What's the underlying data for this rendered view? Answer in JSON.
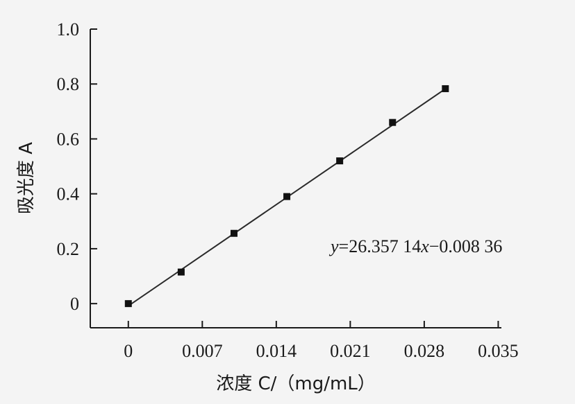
{
  "chart_data": {
    "type": "scatter",
    "x": [
      0,
      0.005,
      0.01,
      0.015,
      0.02,
      0.025,
      0.03
    ],
    "y": [
      0.0,
      0.115,
      0.256,
      0.39,
      0.52,
      0.66,
      0.783
    ],
    "fit_line": {
      "slope": 26.35714,
      "intercept": -0.00836,
      "x_range": [
        0,
        0.03
      ]
    },
    "equation": {
      "prefix": "y",
      "middle": "=26.357 14",
      "var": "x",
      "suffix": "−0.008 36"
    },
    "xlabel": "浓度 C/（mg/mL）",
    "ylabel": "吸光度 A",
    "xticks": [
      {
        "value": 0,
        "label": "0"
      },
      {
        "value": 0.007,
        "label": "0.007"
      },
      {
        "value": 0.014,
        "label": "0.014"
      },
      {
        "value": 0.021,
        "label": "0.021"
      },
      {
        "value": 0.028,
        "label": "0.028"
      },
      {
        "value": 0.035,
        "label": "0.035"
      }
    ],
    "yticks": [
      {
        "value": 0,
        "label": "0"
      },
      {
        "value": 0.2,
        "label": "0.2"
      },
      {
        "value": 0.4,
        "label": "0.4"
      },
      {
        "value": 0.6,
        "label": "0.6"
      },
      {
        "value": 0.8,
        "label": "0.8"
      },
      {
        "value": 1.0,
        "label": "1.0"
      }
    ],
    "xlim": [
      -0.0036,
      0.0353
    ],
    "ylim": [
      -0.088,
      1.0
    ],
    "grid": false,
    "marker": "square",
    "colors": {
      "background": "#f4f4f4",
      "ink": "#1a1a1a"
    }
  }
}
